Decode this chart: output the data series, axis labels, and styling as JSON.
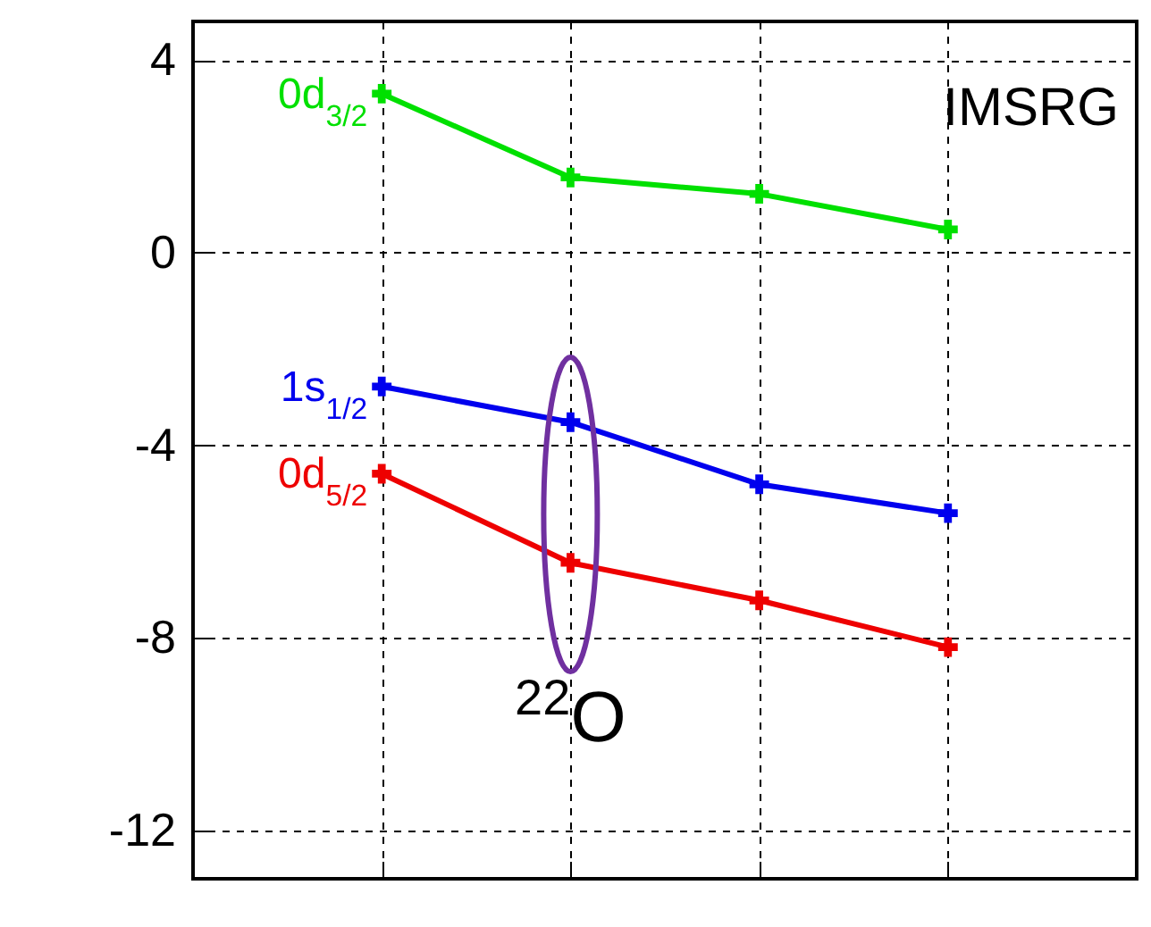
{
  "chart_data": {
    "type": "line",
    "categories": [
      null,
      null,
      null,
      null
    ],
    "ylim": [
      -13,
      4.8
    ],
    "yticks": [
      -12,
      -8,
      -4,
      0,
      4
    ],
    "tick_labels": "y",
    "grid": true,
    "legend": "left",
    "marker": "cross",
    "line_style": "solid",
    "series": [
      {
        "name": "0d$_{3/2}$",
        "color": "#00e000",
        "values": [
          3.3,
          1.56,
          1.22,
          0.48
        ]
      },
      {
        "name": "1s$_{1/2}$",
        "color": "#0000ee",
        "values": [
          -2.78,
          -3.52,
          -4.81,
          -5.41
        ]
      },
      {
        "name": "0d$_{5/2}$",
        "color": "#ee0000",
        "values": [
          -4.59,
          -6.44,
          -7.22,
          -8.19
        ]
      }
    ],
    "annotations": [
      "IMSRG",
      "$^{22}$O"
    ]
  }
}
